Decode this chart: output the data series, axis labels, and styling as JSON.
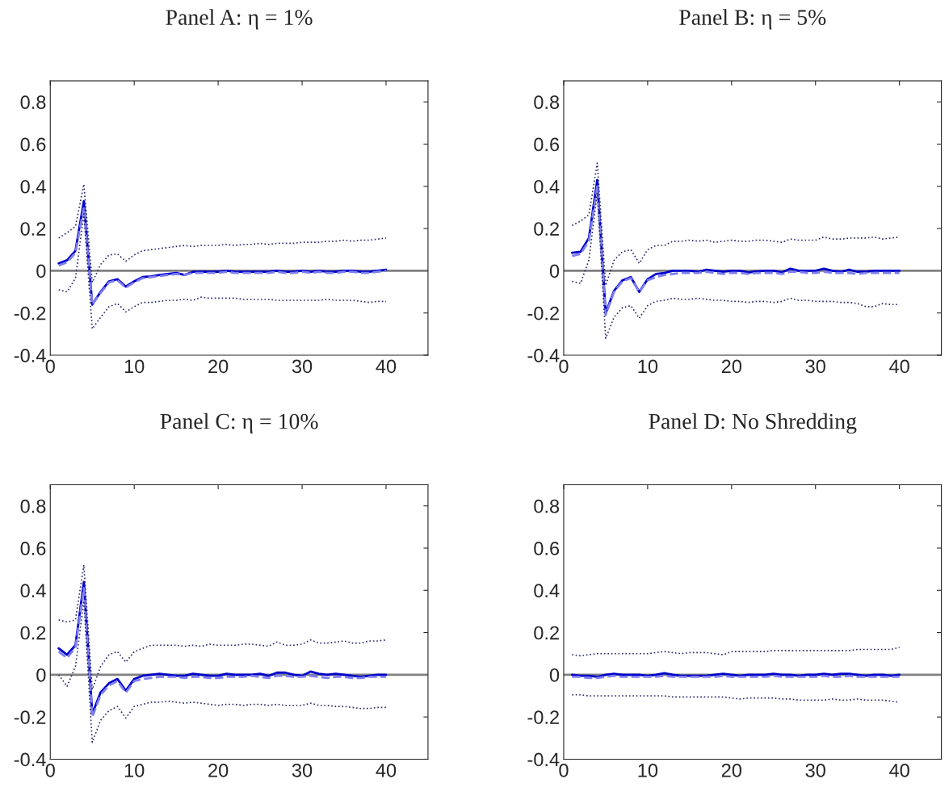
{
  "chart_data": [
    {
      "type": "line",
      "title": "Panel A: η = 1%",
      "x": [
        1,
        2,
        3,
        4,
        5,
        6,
        7,
        8,
        9,
        10,
        11,
        12,
        13,
        14,
        15,
        16,
        17,
        18,
        19,
        20,
        21,
        22,
        23,
        24,
        25,
        26,
        27,
        28,
        29,
        30,
        31,
        32,
        33,
        34,
        35,
        36,
        37,
        38,
        39,
        40
      ],
      "xlim": [
        0,
        45
      ],
      "ylim": [
        -0.4,
        0.9
      ],
      "xticks": [
        0,
        10,
        20,
        30,
        40
      ],
      "yticks": [
        -0.4,
        -0.2,
        0,
        0.2,
        0.4,
        0.6,
        0.8
      ],
      "grid": false,
      "legend": false,
      "ref_lines": [
        {
          "axis": "y",
          "value": 0,
          "color": "#808080",
          "line_style": "solid"
        }
      ],
      "series": [
        {
          "color": "#0000cc",
          "line_style": "solid",
          "values": [
            0.035,
            0.05,
            0.095,
            0.33,
            -0.16,
            -0.1,
            -0.05,
            -0.04,
            -0.075,
            -0.05,
            -0.03,
            -0.027,
            -0.02,
            -0.015,
            -0.01,
            -0.02,
            -0.005,
            -0.005,
            -0.005,
            -0.005,
            0.0,
            -0.005,
            -0.005,
            -0.005,
            -0.005,
            -0.005,
            0.0,
            -0.005,
            -0.005,
            0.0,
            -0.005,
            0.0,
            -0.005,
            -0.005,
            0.0,
            0.0,
            -0.005,
            -0.005,
            0.0,
            0.005
          ]
        },
        {
          "color": "#7f7fef",
          "line_style": "dashed",
          "values": [
            0.025,
            0.04,
            0.085,
            0.3,
            -0.16,
            -0.105,
            -0.055,
            -0.045,
            -0.08,
            -0.055,
            -0.035,
            -0.03,
            -0.025,
            -0.02,
            -0.015,
            -0.02,
            -0.01,
            -0.01,
            -0.01,
            -0.01,
            -0.005,
            -0.01,
            -0.01,
            -0.01,
            -0.01,
            -0.01,
            -0.005,
            -0.01,
            -0.01,
            -0.005,
            -0.01,
            -0.005,
            -0.01,
            -0.01,
            -0.005,
            -0.005,
            -0.01,
            -0.01,
            -0.005,
            0.0
          ]
        },
        {
          "color": "#2b2b6b",
          "line_style": "dotted",
          "values": [
            0.155,
            0.18,
            0.21,
            0.41,
            -0.055,
            0.03,
            0.075,
            0.08,
            0.045,
            0.075,
            0.095,
            0.1,
            0.105,
            0.11,
            0.115,
            0.12,
            0.115,
            0.12,
            0.12,
            0.12,
            0.125,
            0.12,
            0.125,
            0.125,
            0.13,
            0.125,
            0.13,
            0.13,
            0.13,
            0.135,
            0.135,
            0.135,
            0.14,
            0.14,
            0.145,
            0.14,
            0.145,
            0.145,
            0.15,
            0.155
          ]
        },
        {
          "color": "#2b2b6b",
          "line_style": "dotted",
          "values": [
            -0.09,
            -0.1,
            -0.035,
            0.27,
            -0.275,
            -0.22,
            -0.17,
            -0.155,
            -0.195,
            -0.17,
            -0.15,
            -0.15,
            -0.145,
            -0.14,
            -0.14,
            -0.135,
            -0.14,
            -0.125,
            -0.13,
            -0.13,
            -0.13,
            -0.13,
            -0.135,
            -0.135,
            -0.135,
            -0.135,
            -0.14,
            -0.14,
            -0.14,
            -0.14,
            -0.14,
            -0.14,
            -0.135,
            -0.14,
            -0.14,
            -0.14,
            -0.145,
            -0.15,
            -0.145,
            -0.145
          ]
        }
      ]
    },
    {
      "type": "line",
      "title": "Panel B: η = 5%",
      "x": [
        1,
        2,
        3,
        4,
        5,
        6,
        7,
        8,
        9,
        10,
        11,
        12,
        13,
        14,
        15,
        16,
        17,
        18,
        19,
        20,
        21,
        22,
        23,
        24,
        25,
        26,
        27,
        28,
        29,
        30,
        31,
        32,
        33,
        34,
        35,
        36,
        37,
        38,
        39,
        40
      ],
      "xlim": [
        0,
        45
      ],
      "ylim": [
        -0.4,
        0.9
      ],
      "xticks": [
        0,
        10,
        20,
        30,
        40
      ],
      "yticks": [
        -0.4,
        -0.2,
        0,
        0.2,
        0.4,
        0.6,
        0.8
      ],
      "grid": false,
      "legend": false,
      "ref_lines": [
        {
          "axis": "y",
          "value": 0,
          "color": "#808080",
          "line_style": "solid"
        }
      ],
      "series": [
        {
          "color": "#0000cc",
          "line_style": "solid",
          "values": [
            0.085,
            0.09,
            0.155,
            0.43,
            -0.2,
            -0.095,
            -0.045,
            -0.03,
            -0.1,
            -0.04,
            -0.015,
            -0.01,
            0.0,
            0.0,
            0.0,
            -0.005,
            0.005,
            0.0,
            -0.005,
            0.0,
            0.0,
            -0.008,
            -0.003,
            0.0,
            0.0,
            -0.008,
            0.01,
            0.0,
            0.0,
            0.0,
            0.01,
            0.0,
            -0.005,
            0.005,
            -0.005,
            -0.005,
            0.0,
            0.0,
            0.0,
            0.0
          ]
        },
        {
          "color": "#7f7fef",
          "line_style": "dashed",
          "values": [
            0.07,
            0.08,
            0.14,
            0.4,
            -0.21,
            -0.1,
            -0.05,
            -0.035,
            -0.1,
            -0.045,
            -0.03,
            -0.02,
            -0.015,
            -0.01,
            -0.01,
            -0.01,
            -0.005,
            -0.01,
            -0.015,
            -0.01,
            -0.01,
            -0.015,
            -0.01,
            -0.01,
            -0.01,
            -0.015,
            -0.005,
            -0.005,
            -0.01,
            -0.01,
            -0.005,
            -0.01,
            -0.01,
            -0.01,
            -0.015,
            -0.01,
            -0.01,
            -0.01,
            -0.01,
            -0.01
          ]
        },
        {
          "color": "#2b2b6b",
          "line_style": "dotted",
          "values": [
            0.215,
            0.235,
            0.265,
            0.51,
            -0.07,
            0.05,
            0.09,
            0.1,
            0.035,
            0.1,
            0.12,
            0.12,
            0.14,
            0.14,
            0.145,
            0.14,
            0.145,
            0.135,
            0.14,
            0.145,
            0.14,
            0.14,
            0.145,
            0.145,
            0.14,
            0.135,
            0.15,
            0.145,
            0.145,
            0.145,
            0.16,
            0.15,
            0.15,
            0.155,
            0.155,
            0.155,
            0.16,
            0.15,
            0.155,
            0.16
          ]
        },
        {
          "color": "#2b2b6b",
          "line_style": "dotted",
          "values": [
            -0.05,
            -0.06,
            0.05,
            0.37,
            -0.32,
            -0.22,
            -0.175,
            -0.165,
            -0.225,
            -0.165,
            -0.145,
            -0.14,
            -0.13,
            -0.135,
            -0.135,
            -0.13,
            -0.135,
            -0.14,
            -0.14,
            -0.145,
            -0.145,
            -0.15,
            -0.145,
            -0.145,
            -0.15,
            -0.145,
            -0.13,
            -0.14,
            -0.14,
            -0.145,
            -0.145,
            -0.145,
            -0.15,
            -0.15,
            -0.155,
            -0.17,
            -0.17,
            -0.155,
            -0.16,
            -0.16
          ]
        }
      ]
    },
    {
      "type": "line",
      "title": "Panel C: η = 10%",
      "x": [
        1,
        2,
        3,
        4,
        5,
        6,
        7,
        8,
        9,
        10,
        11,
        12,
        13,
        14,
        15,
        16,
        17,
        18,
        19,
        20,
        21,
        22,
        23,
        24,
        25,
        26,
        27,
        28,
        29,
        30,
        31,
        32,
        33,
        34,
        35,
        36,
        37,
        38,
        39,
        40
      ],
      "xlim": [
        0,
        45
      ],
      "ylim": [
        -0.4,
        0.9
      ],
      "xticks": [
        0,
        10,
        20,
        30,
        40
      ],
      "yticks": [
        -0.4,
        -0.2,
        0,
        0.2,
        0.4,
        0.6,
        0.8
      ],
      "grid": false,
      "legend": false,
      "ref_lines": [
        {
          "axis": "y",
          "value": 0,
          "color": "#808080",
          "line_style": "solid"
        }
      ],
      "series": [
        {
          "color": "#0000cc",
          "line_style": "solid",
          "values": [
            0.125,
            0.095,
            0.14,
            0.44,
            -0.185,
            -0.083,
            -0.04,
            -0.02,
            -0.075,
            -0.02,
            -0.005,
            0.0,
            0.005,
            0.0,
            -0.005,
            -0.005,
            0.005,
            0.0,
            -0.005,
            -0.005,
            0.005,
            0.0,
            0.0,
            0.0,
            0.005,
            -0.005,
            0.01,
            0.01,
            0.0,
            -0.005,
            0.015,
            0.005,
            0.0,
            0.005,
            0.0,
            -0.005,
            -0.01,
            -0.005,
            0.0,
            0.0
          ]
        },
        {
          "color": "#7f7fef",
          "line_style": "dashed",
          "values": [
            0.11,
            0.08,
            0.13,
            0.41,
            -0.2,
            -0.095,
            -0.05,
            -0.03,
            -0.085,
            -0.03,
            -0.02,
            -0.015,
            -0.01,
            -0.01,
            -0.01,
            -0.015,
            -0.01,
            -0.01,
            -0.015,
            -0.015,
            -0.01,
            -0.01,
            -0.01,
            -0.005,
            -0.01,
            -0.015,
            -0.005,
            -0.005,
            -0.01,
            -0.01,
            -0.005,
            -0.01,
            -0.015,
            -0.01,
            -0.01,
            -0.015,
            -0.015,
            -0.01,
            -0.01,
            -0.01
          ]
        },
        {
          "color": "#2b2b6b",
          "line_style": "dotted",
          "values": [
            0.26,
            0.25,
            0.26,
            0.52,
            -0.07,
            0.04,
            0.095,
            0.11,
            0.06,
            0.11,
            0.125,
            0.14,
            0.14,
            0.14,
            0.14,
            0.135,
            0.14,
            0.135,
            0.145,
            0.14,
            0.14,
            0.14,
            0.145,
            0.145,
            0.14,
            0.135,
            0.155,
            0.14,
            0.14,
            0.145,
            0.165,
            0.15,
            0.15,
            0.155,
            0.16,
            0.15,
            0.15,
            0.16,
            0.16,
            0.165
          ]
        },
        {
          "color": "#2b2b6b",
          "line_style": "dotted",
          "values": [
            0.0,
            -0.055,
            0.04,
            0.35,
            -0.32,
            -0.215,
            -0.17,
            -0.15,
            -0.205,
            -0.15,
            -0.14,
            -0.13,
            -0.13,
            -0.125,
            -0.13,
            -0.135,
            -0.13,
            -0.135,
            -0.14,
            -0.145,
            -0.14,
            -0.14,
            -0.145,
            -0.14,
            -0.14,
            -0.145,
            -0.14,
            -0.145,
            -0.145,
            -0.145,
            -0.135,
            -0.145,
            -0.145,
            -0.15,
            -0.15,
            -0.155,
            -0.16,
            -0.16,
            -0.155,
            -0.155
          ]
        }
      ]
    },
    {
      "type": "line",
      "title": "Panel D: No Shredding",
      "x": [
        1,
        2,
        3,
        4,
        5,
        6,
        7,
        8,
        9,
        10,
        11,
        12,
        13,
        14,
        15,
        16,
        17,
        18,
        19,
        20,
        21,
        22,
        23,
        24,
        25,
        26,
        27,
        28,
        29,
        30,
        31,
        32,
        33,
        34,
        35,
        36,
        37,
        38,
        39,
        40
      ],
      "xlim": [
        0,
        45
      ],
      "ylim": [
        -0.4,
        0.9
      ],
      "xticks": [
        0,
        10,
        20,
        30,
        40
      ],
      "yticks": [
        -0.4,
        -0.2,
        0,
        0.2,
        0.4,
        0.6,
        0.8
      ],
      "grid": false,
      "legend": false,
      "ref_lines": [
        {
          "axis": "y",
          "value": 0,
          "color": "#808080",
          "line_style": "solid"
        }
      ],
      "series": [
        {
          "color": "#0000cc",
          "line_style": "solid",
          "values": [
            0.0,
            -0.005,
            -0.005,
            -0.01,
            0.0,
            0.005,
            0.0,
            0.0,
            0.0,
            -0.005,
            0.0,
            0.008,
            0.0,
            -0.005,
            -0.005,
            -0.005,
            -0.005,
            0.0,
            0.005,
            0.0,
            -0.005,
            0.0,
            0.0,
            0.0,
            0.005,
            0.0,
            0.0,
            -0.005,
            0.0,
            0.0,
            0.005,
            0.0,
            0.005,
            0.005,
            0.0,
            -0.005,
            0.0,
            0.0,
            -0.005,
            0.0
          ]
        },
        {
          "color": "#7f7fef",
          "line_style": "dashed",
          "values": [
            -0.01,
            -0.01,
            -0.015,
            -0.015,
            -0.01,
            -0.005,
            -0.01,
            -0.01,
            -0.01,
            -0.01,
            -0.01,
            -0.005,
            -0.01,
            -0.01,
            -0.01,
            -0.01,
            -0.01,
            -0.01,
            -0.005,
            -0.01,
            -0.01,
            -0.01,
            -0.01,
            -0.01,
            -0.005,
            -0.01,
            -0.01,
            -0.01,
            -0.01,
            -0.01,
            -0.005,
            -0.01,
            -0.01,
            -0.005,
            -0.01,
            -0.01,
            -0.01,
            -0.01,
            -0.01,
            -0.01
          ]
        },
        {
          "color": "#2b2b6b",
          "line_style": "dotted",
          "values": [
            0.095,
            0.09,
            0.095,
            0.1,
            0.1,
            0.1,
            0.1,
            0.1,
            0.1,
            0.1,
            0.105,
            0.11,
            0.105,
            0.1,
            0.105,
            0.105,
            0.105,
            0.1,
            0.095,
            0.11,
            0.11,
            0.11,
            0.11,
            0.11,
            0.115,
            0.115,
            0.115,
            0.115,
            0.115,
            0.115,
            0.115,
            0.115,
            0.115,
            0.115,
            0.12,
            0.12,
            0.12,
            0.12,
            0.12,
            0.13
          ]
        },
        {
          "color": "#2b2b6b",
          "line_style": "dotted",
          "values": [
            -0.095,
            -0.095,
            -0.1,
            -0.1,
            -0.1,
            -0.1,
            -0.1,
            -0.1,
            -0.1,
            -0.1,
            -0.1,
            -0.1,
            -0.105,
            -0.105,
            -0.105,
            -0.105,
            -0.105,
            -0.105,
            -0.105,
            -0.11,
            -0.115,
            -0.11,
            -0.11,
            -0.11,
            -0.11,
            -0.115,
            -0.115,
            -0.12,
            -0.12,
            -0.12,
            -0.12,
            -0.115,
            -0.12,
            -0.12,
            -0.115,
            -0.12,
            -0.12,
            -0.12,
            -0.125,
            -0.13
          ]
        }
      ]
    }
  ]
}
